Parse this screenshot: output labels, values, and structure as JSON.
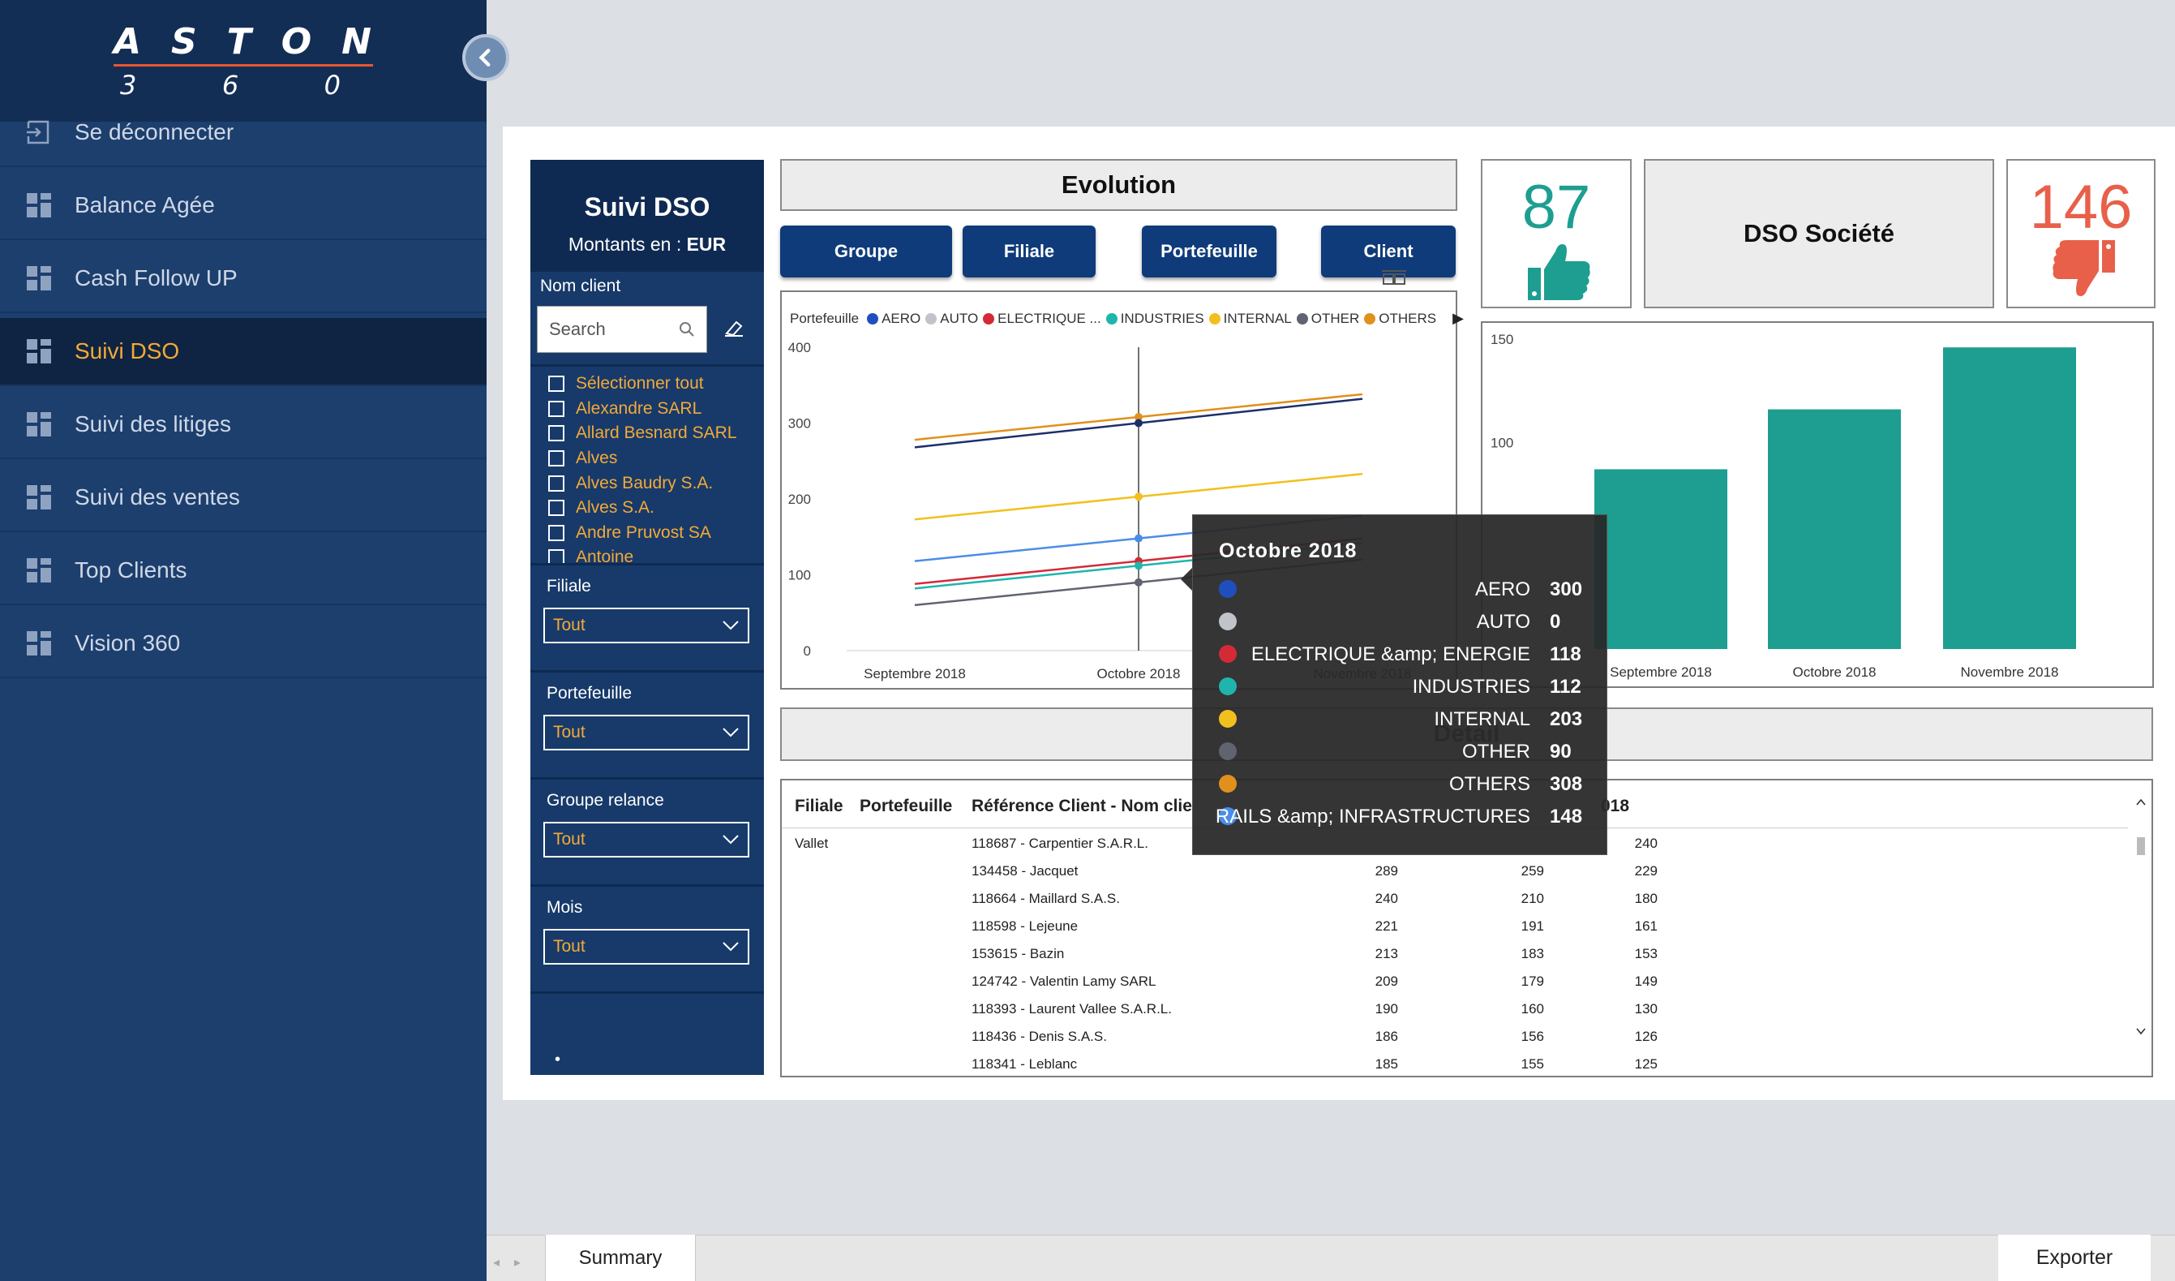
{
  "logo": {
    "word": [
      "A",
      "S",
      "T",
      "O",
      "N"
    ],
    "digits": [
      "3",
      "6",
      "0"
    ]
  },
  "nav": [
    {
      "label": "Se déconnecter",
      "icon": "logout-icon",
      "active": false
    },
    {
      "label": "Balance Agée",
      "icon": "dashboard-icon",
      "active": false
    },
    {
      "label": "Cash Follow UP",
      "icon": "dashboard-icon",
      "active": false
    },
    {
      "label": "Suivi DSO",
      "icon": "dashboard-icon",
      "active": true
    },
    {
      "label": "Suivi des litiges",
      "icon": "dashboard-icon",
      "active": false
    },
    {
      "label": "Suivi des ventes",
      "icon": "dashboard-icon",
      "active": false
    },
    {
      "label": "Top Clients",
      "icon": "dashboard-icon",
      "active": false
    },
    {
      "label": "Vision 360",
      "icon": "dashboard-icon",
      "active": false
    }
  ],
  "filters": {
    "title": "Suivi DSO",
    "currency_prefix": "Montants en : ",
    "currency": "EUR",
    "client_label": "Nom client",
    "search_placeholder": "Search",
    "clients": [
      "Sélectionner tout",
      "Alexandre SARL",
      "Allard Besnard SARL",
      "Alves",
      "Alves Baudry S.A.",
      "Alves S.A.",
      "Andre Pruvost SA",
      "Antoine"
    ],
    "sections": [
      {
        "label": "Filiale",
        "value": "Tout"
      },
      {
        "label": "Portefeuille",
        "value": "Tout"
      },
      {
        "label": "Groupe relance",
        "value": "Tout"
      },
      {
        "label": "Mois",
        "value": "Tout"
      }
    ],
    "page_dots": "• ••"
  },
  "evolution": {
    "title": "Evolution",
    "buttons": [
      "Groupe",
      "Filiale",
      "Portefeuille",
      "Client"
    ]
  },
  "colors": {
    "AERO": "#1f4fbf",
    "AUTO": "#c0c4ca",
    "ELECTRIQUE": "#d42a38",
    "INDUSTRIES": "#1fb5ad",
    "INTERNAL": "#f2c01e",
    "OTHER": "#5f6470",
    "OTHERS": "#e0901c",
    "RAILS": "#4a8de8",
    "navy_line": "#1b2f6b",
    "teal_bar": "#1d9e90",
    "kpi_good": "#1d9e90",
    "kpi_bad": "#e8604a"
  },
  "chart_data": [
    {
      "type": "line",
      "legend_title": "Portefeuille",
      "legend": [
        "AERO",
        "AUTO",
        "ELECTRIQUE ...",
        "INDUSTRIES",
        "INTERNAL",
        "OTHER",
        "OTHERS"
      ],
      "x": [
        "Septembre 2018",
        "Octobre 2018",
        "Novembre 2018"
      ],
      "ylim": [
        0,
        400
      ],
      "yticks": [
        0,
        100,
        200,
        300,
        400
      ],
      "series": [
        {
          "name": "OTHERS",
          "values": [
            278,
            308,
            338
          ]
        },
        {
          "name": "AERO",
          "values": [
            268,
            300,
            332
          ]
        },
        {
          "name": "INTERNAL",
          "values": [
            173,
            203,
            233
          ]
        },
        {
          "name": "RAILS &amp; INFRASTRUCTURES",
          "values": [
            118,
            148,
            178
          ]
        },
        {
          "name": "ELECTRIQUE &amp; ENERGIE",
          "values": [
            88,
            118,
            148
          ]
        },
        {
          "name": "INDUSTRIES",
          "values": [
            82,
            112,
            142
          ]
        },
        {
          "name": "OTHER",
          "values": [
            60,
            90,
            120
          ]
        }
      ]
    },
    {
      "type": "bar",
      "categories": [
        "Septembre 2018",
        "Octobre 2018",
        "Novembre 2018"
      ],
      "values": [
        87,
        116,
        146
      ],
      "ylim": [
        0,
        150
      ],
      "yticks": [
        100,
        150
      ]
    }
  ],
  "kpi": {
    "good": "87",
    "title": "DSO Société",
    "bad": "146"
  },
  "tooltip": {
    "title": "Octobre 2018",
    "rows": [
      {
        "label": "AERO",
        "value": "300",
        "key": "AERO"
      },
      {
        "label": "AUTO",
        "value": "0",
        "key": "AUTO"
      },
      {
        "label": "ELECTRIQUE &amp; ENERGIE",
        "value": "118",
        "key": "ELECTRIQUE"
      },
      {
        "label": "INDUSTRIES",
        "value": "112",
        "key": "INDUSTRIES"
      },
      {
        "label": "INTERNAL",
        "value": "203",
        "key": "INTERNAL"
      },
      {
        "label": "OTHER",
        "value": "90",
        "key": "OTHER"
      },
      {
        "label": "OTHERS",
        "value": "308",
        "key": "OTHERS"
      },
      {
        "label": "RAILS &amp; INFRASTRUCTURES",
        "value": "148",
        "key": "RAILS"
      }
    ]
  },
  "detail": {
    "title": "Detail",
    "headers": [
      "Filiale",
      "Portefeuille",
      "Référence Client - Nom clie",
      "018"
    ],
    "rows": [
      {
        "filiale": "Vallet",
        "client": "118687 - Carpentier S.A.R.L.",
        "c1": "",
        "c2": "",
        "c3": "240"
      },
      {
        "filiale": "",
        "client": "134458 - Jacquet",
        "c1": "289",
        "c2": "259",
        "c3": "229"
      },
      {
        "filiale": "",
        "client": "118664 - Maillard S.A.S.",
        "c1": "240",
        "c2": "210",
        "c3": "180"
      },
      {
        "filiale": "",
        "client": "118598 - Lejeune",
        "c1": "221",
        "c2": "191",
        "c3": "161"
      },
      {
        "filiale": "",
        "client": "153615 - Bazin",
        "c1": "213",
        "c2": "183",
        "c3": "153"
      },
      {
        "filiale": "",
        "client": "124742 - Valentin Lamy SARL",
        "c1": "209",
        "c2": "179",
        "c3": "149"
      },
      {
        "filiale": "",
        "client": "118393 - Laurent Vallee S.A.R.L.",
        "c1": "190",
        "c2": "160",
        "c3": "130"
      },
      {
        "filiale": "",
        "client": "118436 - Denis S.A.S.",
        "c1": "186",
        "c2": "156",
        "c3": "126"
      },
      {
        "filiale": "",
        "client": "118341 - Leblanc",
        "c1": "185",
        "c2": "155",
        "c3": "125"
      }
    ]
  },
  "bottom": {
    "tab": "Summary",
    "export": "Exporter"
  }
}
